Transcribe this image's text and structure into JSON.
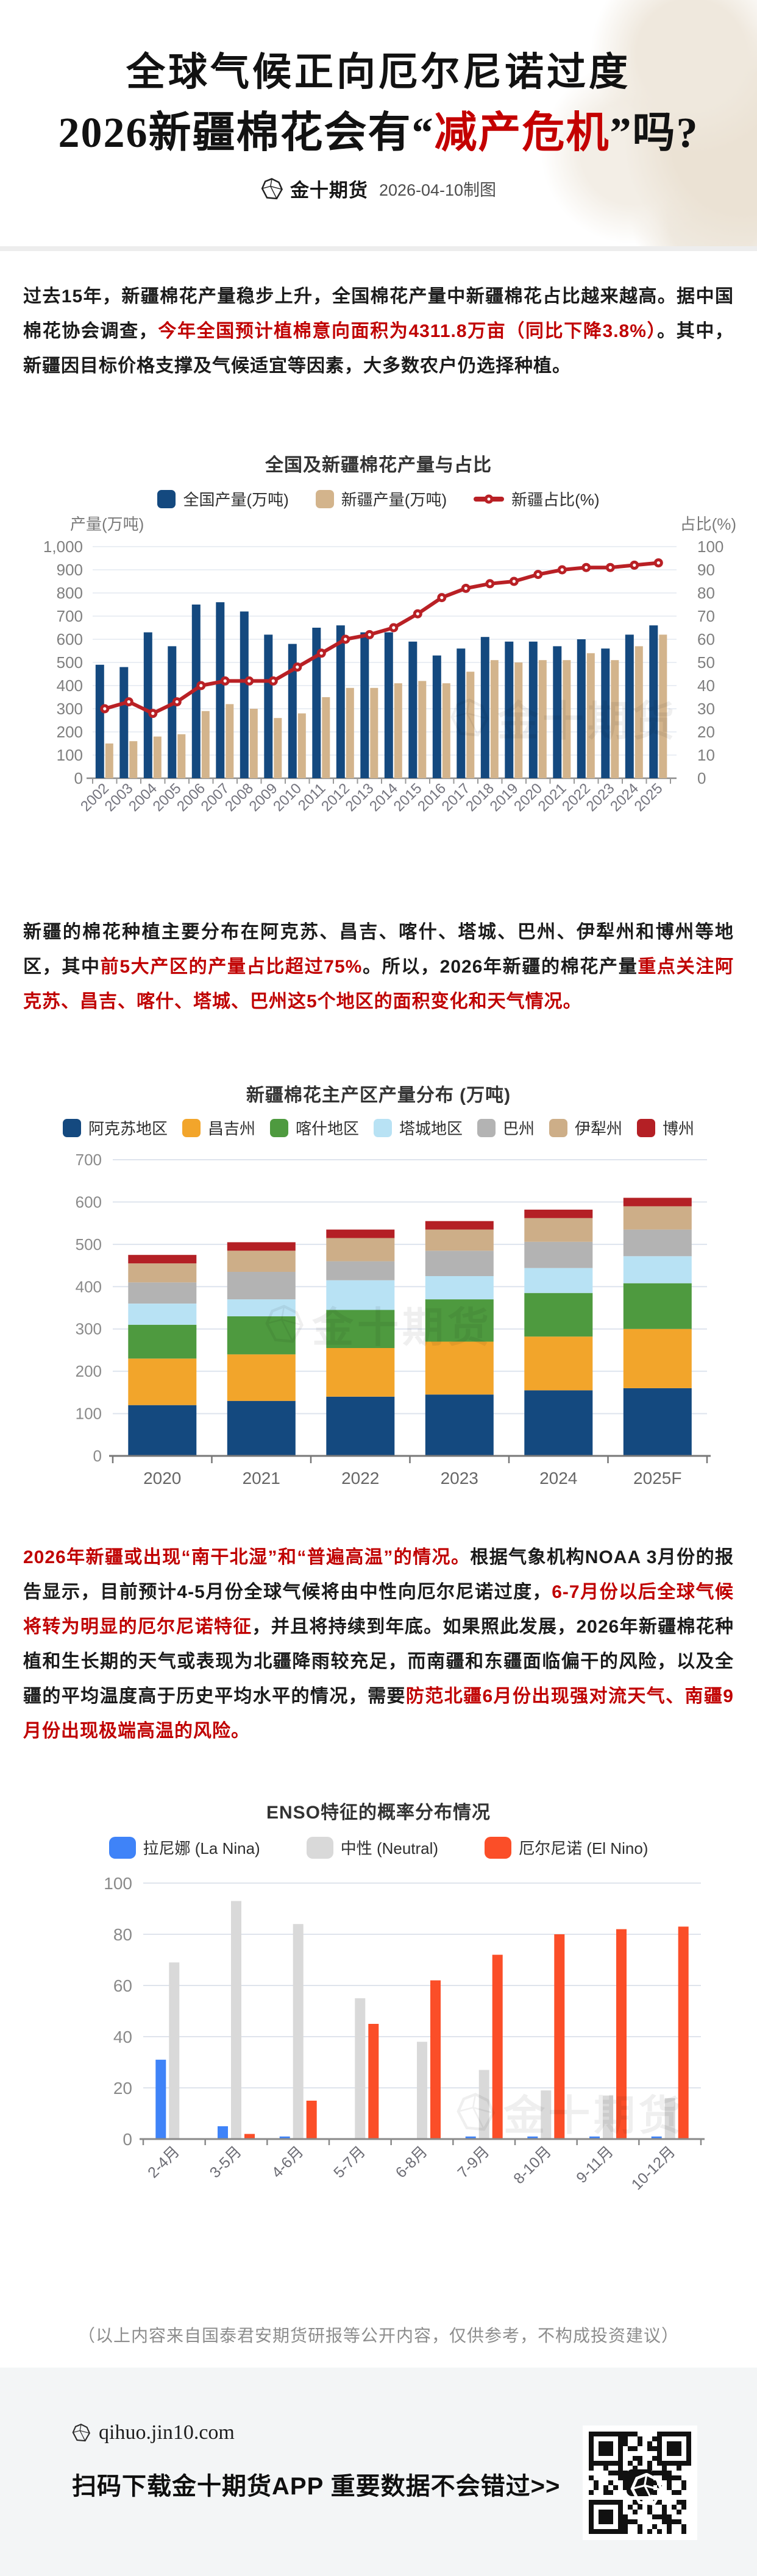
{
  "header": {
    "title_line1": "全球气候正向厄尔尼诺过度",
    "title_line2_prefix": "2026新疆棉花会有“",
    "title_line2_highlight": "减产危机",
    "title_line2_suffix": "”吗?",
    "brand": "金十期货",
    "date_note": "2026-04-10制图"
  },
  "paragraphs": {
    "p1": [
      {
        "t": "过去15年，新疆棉花产量稳步上升，全国棉花产量中新疆棉花占比越来越高。据中国棉花协会调查，",
        "red": false
      },
      {
        "t": "今年全国预计植棉意向面积为4311.8万亩（同比下降3.8%）",
        "red": true
      },
      {
        "t": "。其中，新疆因目标价格支撑及气候适宜等因素，大多数农户仍选择种植。",
        "red": false
      }
    ],
    "p2": [
      {
        "t": "新疆的棉花种植主要分布在阿克苏、昌吉、喀什、塔城、巴州、伊犁州和博州等地区，其中",
        "red": false
      },
      {
        "t": "前5大产区的产量占比超过75%",
        "red": true
      },
      {
        "t": "。所以，2026年新疆的棉花产量",
        "red": false
      },
      {
        "t": "重点关注阿克苏、昌吉、喀什、塔城、巴州这5个地区的面积变化和天气情况。",
        "red": true
      }
    ],
    "p3": [
      {
        "t": "2026年新疆或出现“南干北湿”和“普遍高温”的情况。",
        "red": true
      },
      {
        "t": "根据气象机构NOAA 3月份的报告显示，目前预计4-5月份全球气候将由中性向厄尔尼诺过度，",
        "red": false
      },
      {
        "t": "6-7月份以后全球气候将转为明显的厄尔尼诺特征",
        "red": true
      },
      {
        "t": "，并且将持续到年底。如果照此发展，2026年新疆棉花种植和生长期的天气或表现为北疆降雨较充足，而南疆和东疆面临偏干的风险，以及全疆的平均温度高于历史平均水平的情况，需要",
        "red": false
      },
      {
        "t": "防范北疆6月份出现强对流天气、南疆9月份出现极端高温的风险。",
        "red": true
      }
    ]
  },
  "chart_data": [
    {
      "id": "national-xinjiang-cotton-production",
      "type": "bar",
      "subtype": "dual-axis-bar-line",
      "title": "全国及新疆棉花产量与占比",
      "left_axis_label": "产量(万吨)",
      "right_axis_label": "占比(%)",
      "left_ylim": [
        0,
        1000
      ],
      "right_ylim": [
        0,
        100
      ],
      "grid": true,
      "legend_position": "top",
      "categories": [
        "2002",
        "2003",
        "2004",
        "2005",
        "2006",
        "2007",
        "2008",
        "2009",
        "2010",
        "2011",
        "2012",
        "2013",
        "2014",
        "2015",
        "2016",
        "2017",
        "2018",
        "2019",
        "2020",
        "2021",
        "2022",
        "2023",
        "2024",
        "2025"
      ],
      "series": [
        {
          "name": "全国产量(万吨)",
          "kind": "bar",
          "color": "#14497F",
          "values": [
            490,
            480,
            630,
            570,
            750,
            760,
            720,
            620,
            580,
            650,
            660,
            630,
            630,
            590,
            530,
            560,
            610,
            590,
            590,
            570,
            600,
            560,
            620,
            660
          ]
        },
        {
          "name": "新疆产量(万吨)",
          "kind": "bar",
          "color": "#D3B48C",
          "values": [
            150,
            160,
            180,
            190,
            290,
            320,
            300,
            260,
            280,
            350,
            390,
            390,
            410,
            420,
            410,
            460,
            510,
            500,
            510,
            510,
            540,
            510,
            570,
            620
          ]
        },
        {
          "name": "新疆占比(%)",
          "kind": "line",
          "axis": "right",
          "color": "#B92025",
          "values": [
            30,
            33,
            28,
            33,
            40,
            42,
            42,
            42,
            48,
            54,
            60,
            62,
            65,
            71,
            78,
            82,
            84,
            85,
            88,
            90,
            91,
            91,
            92,
            93
          ]
        }
      ]
    },
    {
      "id": "xinjiang-region-production-distribution",
      "type": "bar",
      "subtype": "stacked-bar",
      "title": "新疆棉花主产区产量分布 (万吨)",
      "ylim": [
        0,
        700
      ],
      "grid": true,
      "legend_position": "top",
      "categories": [
        "2020",
        "2021",
        "2022",
        "2023",
        "2024",
        "2025F"
      ],
      "series": [
        {
          "name": "阿克苏地区",
          "color": "#14497F",
          "values": [
            120,
            130,
            140,
            145,
            155,
            160
          ]
        },
        {
          "name": "昌吉州",
          "color": "#F2A52B",
          "values": [
            110,
            110,
            115,
            125,
            127,
            140
          ]
        },
        {
          "name": "喀什地区",
          "color": "#4E9A3F",
          "values": [
            80,
            90,
            90,
            100,
            103,
            108
          ]
        },
        {
          "name": "塔城地区",
          "color": "#B8E2F4",
          "values": [
            50,
            40,
            70,
            55,
            59,
            64
          ]
        },
        {
          "name": "巴州",
          "color": "#B3B3B3",
          "values": [
            50,
            65,
            45,
            60,
            62,
            63
          ]
        },
        {
          "name": "伊犁州",
          "color": "#CDAE88",
          "values": [
            45,
            50,
            55,
            50,
            56,
            55
          ]
        },
        {
          "name": "博州",
          "color": "#B42025",
          "values": [
            20,
            20,
            20,
            20,
            20,
            20
          ]
        }
      ]
    },
    {
      "id": "enso-probability-distribution",
      "type": "bar",
      "subtype": "grouped-bar",
      "title": "ENSO特征的概率分布情况",
      "ylim": [
        0,
        100
      ],
      "grid": true,
      "legend_position": "top",
      "categories": [
        "2-4月",
        "3-5月",
        "4-6月",
        "5-7月",
        "6-8月",
        "7-9月",
        "8-10月",
        "9-11月",
        "10-12月"
      ],
      "series": [
        {
          "name": "拉尼娜 (La Nina)",
          "color": "#3F83F8",
          "values": [
            31,
            5,
            1,
            0,
            0,
            1,
            1,
            1,
            1
          ]
        },
        {
          "name": "中性 (Neutral)",
          "color": "#D9D9D9",
          "values": [
            69,
            93,
            84,
            55,
            38,
            27,
            19,
            17,
            16
          ]
        },
        {
          "name": "厄尔尼诺 (El Nino)",
          "color": "#FB4E28",
          "values": [
            0,
            2,
            15,
            45,
            62,
            72,
            80,
            82,
            83
          ]
        }
      ]
    }
  ],
  "watermark_text": "金十期货",
  "disclaimer": "（以上内容来自国泰君安期货研报等公开内容，仅供参考，不构成投资建议）",
  "footer": {
    "site": "qihuo.jin10.com",
    "cta": "扫码下载金十期货APP 重要数据不会错过>>"
  },
  "colors": {
    "accent_red": "#C00000",
    "title_red": "#C40000",
    "navy": "#14497F",
    "tan": "#D3B48C",
    "line_red": "#B92025",
    "footer_bg": "#F3F5F6",
    "divider": "#EDEDED"
  }
}
